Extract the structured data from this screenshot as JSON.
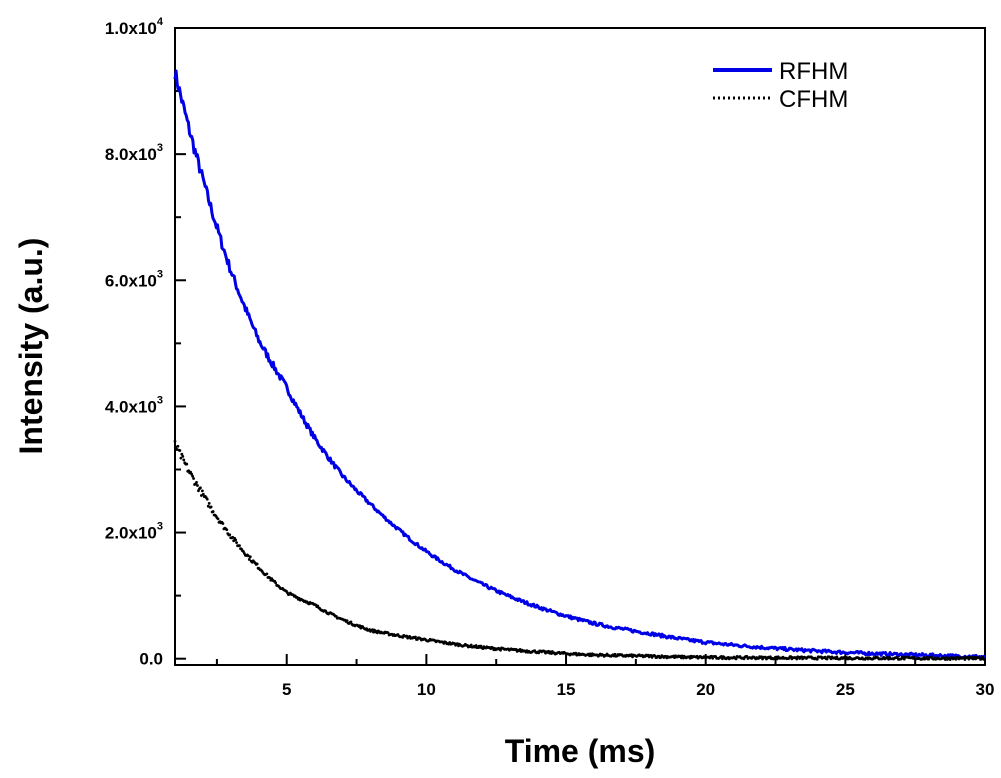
{
  "chart_data": {
    "type": "line",
    "title": "",
    "xlabel": "Time (ms)",
    "ylabel": "Intensity (a.u.)",
    "xlim": [
      1,
      30
    ],
    "ylim": [
      -100,
      10000
    ],
    "x_ticks": [
      {
        "value": 5,
        "label": "5"
      },
      {
        "value": 10,
        "label": "10"
      },
      {
        "value": 15,
        "label": "15"
      },
      {
        "value": 20,
        "label": "20"
      },
      {
        "value": 25,
        "label": "25"
      },
      {
        "value": 30,
        "label": "30"
      }
    ],
    "y_ticks": [
      {
        "value": 0,
        "label": "0.0",
        "exp": ""
      },
      {
        "value": 2000,
        "label": "2.0x10",
        "exp": "3"
      },
      {
        "value": 4000,
        "label": "4.0x10",
        "exp": "3"
      },
      {
        "value": 6000,
        "label": "6.0x10",
        "exp": "3"
      },
      {
        "value": 8000,
        "label": "8.0x10",
        "exp": "3"
      },
      {
        "value": 10000,
        "label": "1.0x10",
        "exp": "4"
      }
    ],
    "grid": false,
    "legend_position": "top-right",
    "series": [
      {
        "name": "RFHM",
        "color": "#0000e6",
        "style": "solid",
        "x": [
          1,
          2,
          3,
          4,
          5,
          6,
          7,
          8,
          9,
          10,
          12,
          14,
          16,
          18,
          20,
          22,
          25,
          28,
          30
        ],
        "y": [
          9300,
          7600,
          6150,
          5050,
          4300,
          3500,
          2900,
          2450,
          2050,
          1700,
          1180,
          820,
          560,
          400,
          260,
          180,
          100,
          55,
          30
        ]
      },
      {
        "name": "CFHM",
        "color": "#000000",
        "style": "dotted",
        "x": [
          1,
          2,
          3,
          4,
          5,
          6,
          7,
          8,
          10,
          12,
          14,
          16,
          18,
          20,
          25,
          30
        ],
        "y": [
          3400,
          2600,
          1950,
          1450,
          1050,
          850,
          620,
          450,
          300,
          180,
          110,
          60,
          40,
          20,
          10,
          5
        ]
      }
    ]
  }
}
